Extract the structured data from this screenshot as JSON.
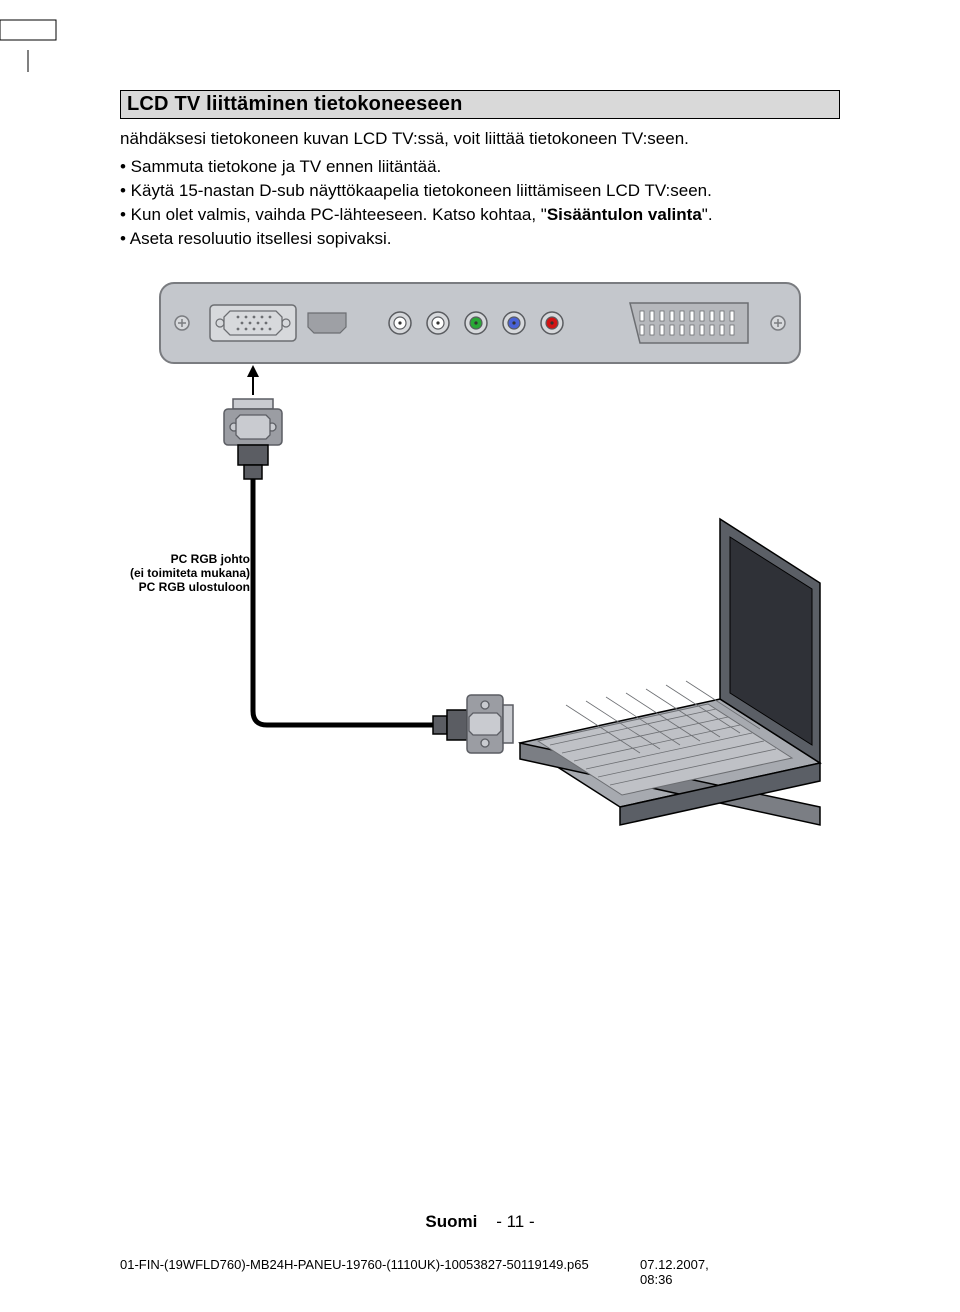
{
  "heading": "LCD TV liittäminen tietokoneeseen",
  "intro": "nähdäksesi tietokoneen kuvan LCD TV:ssä, voit liittää tietokoneen TV:seen.",
  "bullets": {
    "b1": "• Sammuta tietokone ja TV ennen liitäntää.",
    "b2": "• Käytä 15-nastan D-sub näyttökaapelia tietokoneen liittämiseen LCD TV:seen.",
    "b3_pre": "• Kun olet valmis, vaihda PC-lähteeseen. Katso kohtaa, \"",
    "b3_bold": "Sisääntulon valinta",
    "b3_post": "\".",
    "b4": "• Aseta resoluutio itsellesi sopivaksi."
  },
  "diagram": {
    "label_line1": "PC RGB johto",
    "label_line2": "(ei toimiteta mukana)",
    "label_line3": "PC RGB ulostuloon",
    "panel_bg": "#c4c7cc",
    "panel_stroke": "#7a7c80",
    "jack_colors": [
      "#ffffff",
      "#ffffff",
      "#2aa836",
      "#4a62d6",
      "#d11414"
    ],
    "jack_ring": "#5a5c60",
    "scart_fill": "#b6b8bc",
    "scart_pin": "#ffffff",
    "vga_stroke": "#6c6e72",
    "vga_fill": "#d7d9dc",
    "hdmi_fill": "#9ea0a5",
    "connector_dark": "#5b5d63",
    "connector_mid": "#9b9da3",
    "connector_light": "#c9cbd0",
    "cable_stroke": "#000000",
    "cable_width": 5,
    "laptop_top": "#5b5f66",
    "laptop_side": "#7b7e84",
    "laptop_screen": "#2f3137",
    "laptop_keys": "#bfc1c6",
    "laptop_body": "#a7aab0",
    "arrow_stroke": "#000000",
    "text_color": "#000000",
    "text_size": 12
  },
  "footer": {
    "language": "Suomi",
    "page": "- 11 -"
  },
  "srcline": {
    "left": "01-FIN-(19WFLD760)-MB24H-PANEU-19760-(1110UK)-10053827-50119149.p65",
    "right": "07.12.2007, 08:36"
  },
  "page_bg": "#ffffff"
}
